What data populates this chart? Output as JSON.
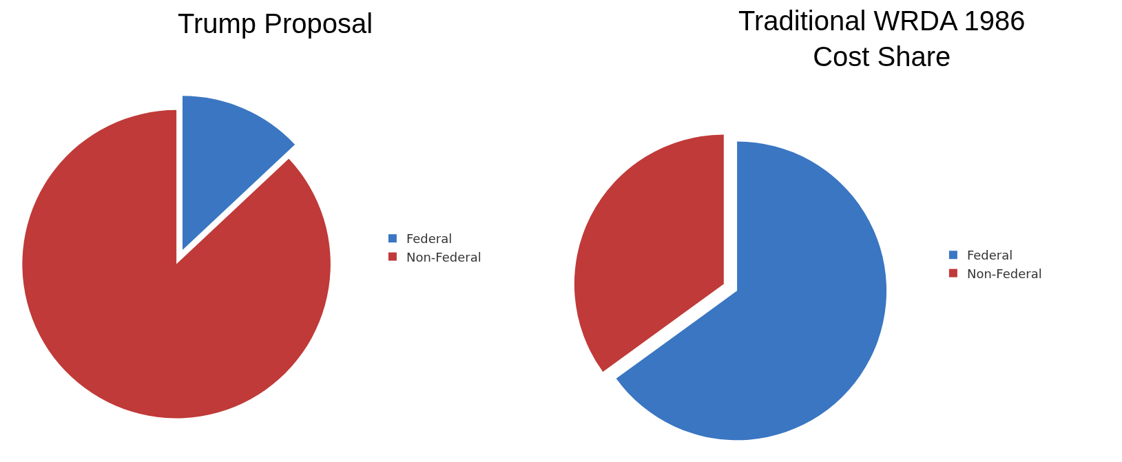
{
  "chart_data": [
    {
      "type": "pie",
      "title": "Trump Proposal",
      "categories": [
        "Federal",
        "Non-Federal"
      ],
      "values": [
        13,
        87
      ],
      "colors": [
        "#3a76c2",
        "#bf3a38"
      ],
      "legend": "right"
    },
    {
      "type": "pie",
      "title": "Traditional WRDA 1986\nCost Share",
      "categories": [
        "Federal",
        "Non-Federal"
      ],
      "values": [
        65,
        35
      ],
      "colors": [
        "#3a76c2",
        "#bf3a38"
      ],
      "legend": "right"
    }
  ]
}
